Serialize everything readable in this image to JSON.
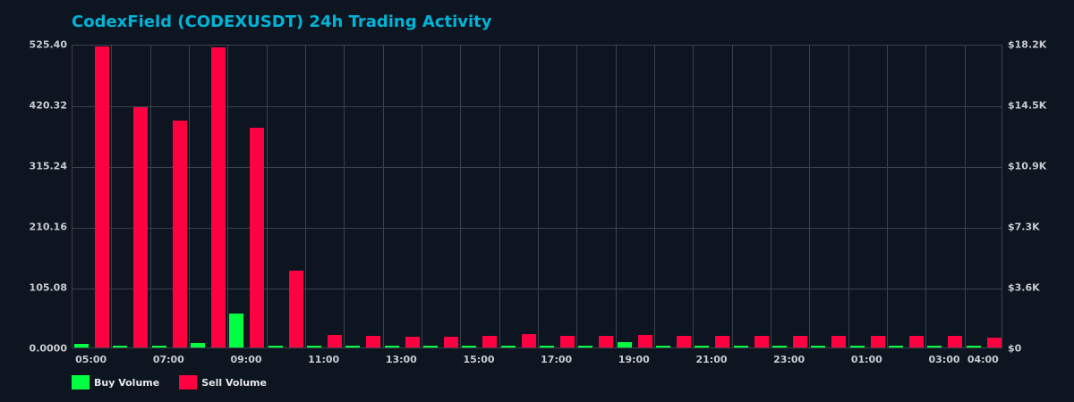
{
  "chart_data": {
    "type": "bar",
    "title": "CodexField (CODEXUSDT) 24h Trading Activity",
    "xlabel": "",
    "ylabel": "",
    "ylim": [
      0,
      525.4
    ],
    "y2lim": [
      0,
      18200
    ],
    "grid": true,
    "legend_position": "bottom-left",
    "categories": [
      "05:00",
      "06:00",
      "07:00",
      "08:00",
      "09:00",
      "10:00",
      "11:00",
      "12:00",
      "13:00",
      "14:00",
      "15:00",
      "16:00",
      "17:00",
      "18:00",
      "19:00",
      "20:00",
      "21:00",
      "22:00",
      "23:00",
      "00:00",
      "01:00",
      "02:00",
      "03:00",
      "04:00"
    ],
    "series": [
      {
        "name": "Buy Volume",
        "color": "#00ff41",
        "values": [
          5.6,
          2.0,
          3.5,
          8.2,
          59.2,
          2.0,
          3.5,
          3.5,
          2.0,
          2.0,
          2.0,
          0.5,
          0.5,
          0.5,
          9.7,
          0.5,
          0.5,
          0.5,
          0.5,
          2.0,
          0.5,
          0.5,
          0.5,
          2.0
        ]
      },
      {
        "name": "Sell Volume",
        "color": "#ff0040",
        "values": [
          520.7,
          415.6,
          392.5,
          519.2,
          380.6,
          133.3,
          22.1,
          20.5,
          19.0,
          19.0,
          20.5,
          23.6,
          20.5,
          20.5,
          22.1,
          20.5,
          20.5,
          20.5,
          20.5,
          20.5,
          20.5,
          20.5,
          20.5,
          17.5
        ]
      }
    ],
    "y_ticks_left": [
      "0.0000",
      "105.08",
      "210.16",
      "315.24",
      "420.32",
      "525.40"
    ],
    "y_ticks_right": [
      "$0",
      "$3.6K",
      "$7.3K",
      "$10.9K",
      "$14.5K",
      "$18.2K"
    ],
    "x_tick_labels": [
      {
        "label": "05:00",
        "index": 0
      },
      {
        "label": "07:00",
        "index": 2
      },
      {
        "label": "09:00",
        "index": 4
      },
      {
        "label": "11:00",
        "index": 6
      },
      {
        "label": "13:00",
        "index": 8
      },
      {
        "label": "15:00",
        "index": 10
      },
      {
        "label": "17:00",
        "index": 12
      },
      {
        "label": "19:00",
        "index": 14
      },
      {
        "label": "21:00",
        "index": 16
      },
      {
        "label": "23:00",
        "index": 18
      },
      {
        "label": "01:00",
        "index": 20
      },
      {
        "label": "03:00",
        "index": 22
      },
      {
        "label": "04:00",
        "index": 23
      }
    ]
  },
  "header": {
    "title": "CodexField (CODEXUSDT) 24h Trading Activity"
  },
  "legend": {
    "items": [
      {
        "label": "Buy Volume",
        "color": "#00ff41"
      },
      {
        "label": "Sell Volume",
        "color": "#ff0040"
      }
    ]
  }
}
